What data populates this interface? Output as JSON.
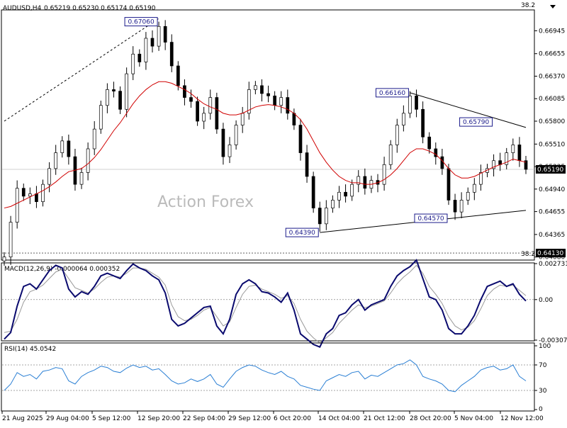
{
  "chart_data": [
    {
      "type": "candlestick",
      "title": "AUDUSD,H4",
      "ohlc": "0.65219 0.65230 0.65174 0.65190",
      "marker_text": "38.2",
      "watermark": "Action Forex",
      "ylim": [
        0.6405,
        0.672
      ],
      "y_ticks": [
        "0.66945",
        "0.66655",
        "0.66370",
        "0.66085",
        "0.65800",
        "0.65510",
        "0.65225",
        "0.64940",
        "0.64655",
        "0.64365",
        "0.64080"
      ],
      "x_ticks": [
        "21 Aug 2025",
        "29 Aug 04:00",
        "5 Sep 12:00",
        "12 Sep 20:00",
        "22 Sep 04:00",
        "29 Sep 12:00",
        "6 Oct 20:00",
        "14 Oct 04:00",
        "21 Oct 12:00",
        "28 Oct 20:00",
        "5 Nov 04:00",
        "12 Nov 12:00"
      ],
      "current_price": "0.65190",
      "fib_level": "0.64130",
      "annotations": [
        {
          "label": "0.67060",
          "x": "12 Sep 2025",
          "y": 0.6706
        },
        {
          "label": "0.64390",
          "x": "14 Oct 2025",
          "y": 0.6439
        },
        {
          "label": "0.66160",
          "x": "28 Oct 2025",
          "y": 0.6616
        },
        {
          "label": "0.64570",
          "x": "5 Nov 2025",
          "y": 0.6457
        },
        {
          "label": "0.65790",
          "x": "11 Nov 2025",
          "y": 0.6579
        }
      ],
      "series": [
        {
          "name": "price",
          "values": [
            0.6408,
            0.6452,
            0.6495,
            0.6485,
            0.6488,
            0.6478,
            0.65,
            0.652,
            0.654,
            0.6555,
            0.6535,
            0.65,
            0.6515,
            0.6545,
            0.657,
            0.66,
            0.662,
            0.6618,
            0.6595,
            0.664,
            0.6665,
            0.6655,
            0.6685,
            0.6675,
            0.67,
            0.668,
            0.665,
            0.6625,
            0.661,
            0.6605,
            0.658,
            0.659,
            0.661,
            0.657,
            0.6535,
            0.655,
            0.6575,
            0.659,
            0.662,
            0.6625,
            0.6615,
            0.6612,
            0.66,
            0.661,
            0.659,
            0.6575,
            0.654,
            0.651,
            0.647,
            0.645,
            0.647,
            0.648,
            0.649,
            0.6485,
            0.65,
            0.651,
            0.6495,
            0.6505,
            0.65,
            0.6525,
            0.655,
            0.6575,
            0.659,
            0.6612,
            0.6595,
            0.656,
            0.6545,
            0.6535,
            0.652,
            0.648,
            0.6465,
            0.648,
            0.649,
            0.65,
            0.6515,
            0.652,
            0.653,
            0.6525,
            0.654,
            0.655,
            0.653,
            0.6519
          ]
        },
        {
          "name": "ma",
          "values": [
            0.647,
            0.6472,
            0.6476,
            0.648,
            0.6484,
            0.6488,
            0.6492,
            0.6497,
            0.6503,
            0.651,
            0.6516,
            0.6518,
            0.652,
            0.6526,
            0.6534,
            0.6544,
            0.6556,
            0.6568,
            0.6578,
            0.659,
            0.6602,
            0.6612,
            0.662,
            0.6626,
            0.663,
            0.663,
            0.6628,
            0.6624,
            0.662,
            0.6615,
            0.6608,
            0.6602,
            0.6598,
            0.6595,
            0.659,
            0.6588,
            0.6588,
            0.659,
            0.6594,
            0.6598,
            0.66,
            0.6601,
            0.66,
            0.6598,
            0.6595,
            0.659,
            0.6582,
            0.657,
            0.6555,
            0.654,
            0.6528,
            0.6518,
            0.651,
            0.6505,
            0.6502,
            0.6502,
            0.65,
            0.65,
            0.6502,
            0.6506,
            0.6512,
            0.652,
            0.653,
            0.654,
            0.6545,
            0.6545,
            0.6542,
            0.6538,
            0.653,
            0.652,
            0.6512,
            0.6508,
            0.6508,
            0.651,
            0.6514,
            0.6518,
            0.6522,
            0.6525,
            0.6528,
            0.6532,
            0.653,
            0.6528
          ]
        }
      ]
    },
    {
      "type": "line",
      "title": "MACD(12,26,9) -0.000064 0.000352",
      "ylim": [
        -0.003077,
        0.002731
      ],
      "y_ticks": [
        "0.002731",
        "0.00",
        "-0.003077"
      ],
      "series": [
        {
          "name": "macd",
          "values": [
            -0.003,
            -0.0025,
            -0.0005,
            0.001,
            0.0012,
            0.0008,
            0.0015,
            0.0022,
            0.0026,
            0.0024,
            0.0008,
            0.0002,
            0.0006,
            0.0004,
            0.001,
            0.0018,
            0.002,
            0.0018,
            0.0016,
            0.0022,
            0.0027,
            0.0024,
            0.0022,
            0.0018,
            0.0015,
            0.0005,
            -0.0015,
            -0.002,
            -0.0018,
            -0.0014,
            -0.001,
            -0.0006,
            -0.0005,
            -0.002,
            -0.0026,
            -0.0015,
            0.0004,
            0.0012,
            0.0015,
            0.0012,
            0.0006,
            0.0005,
            0.0002,
            -0.0002,
            0.0005,
            -0.0008,
            -0.0026,
            -0.003,
            -0.0034,
            -0.0036,
            -0.0026,
            -0.0022,
            -0.0012,
            -0.001,
            -0.0004,
            0.0,
            -0.0008,
            -0.0004,
            -0.0002,
            0.0,
            0.001,
            0.0018,
            0.0022,
            0.0025,
            0.003,
            0.0016,
            0.0002,
            0.0,
            -0.0008,
            -0.0022,
            -0.0026,
            -0.0026,
            -0.002,
            -0.0012,
            0.0,
            0.001,
            0.0012,
            0.0014,
            0.001,
            0.0012,
            0.0004,
            -0.0001
          ]
        },
        {
          "name": "signal",
          "values": [
            -0.0025,
            -0.0024,
            -0.0015,
            -0.0002,
            0.0006,
            0.0008,
            0.0011,
            0.0016,
            0.0021,
            0.0023,
            0.0016,
            0.0009,
            0.0007,
            0.0005,
            0.0008,
            0.0013,
            0.0017,
            0.0018,
            0.0017,
            0.002,
            0.0024,
            0.0024,
            0.0023,
            0.002,
            0.0017,
            0.0011,
            -0.0004,
            -0.0013,
            -0.0016,
            -0.0015,
            -0.0012,
            -0.0008,
            -0.0006,
            -0.0013,
            -0.002,
            -0.0017,
            -0.0006,
            0.0004,
            0.001,
            0.0011,
            0.0008,
            0.0006,
            0.0004,
            0.0001,
            0.0003,
            -0.0003,
            -0.0015,
            -0.0024,
            -0.0029,
            -0.0033,
            -0.0029,
            -0.0025,
            -0.0018,
            -0.0013,
            -0.0008,
            -0.0004,
            -0.0006,
            -0.0005,
            -0.0003,
            -0.0001,
            0.0005,
            0.0012,
            0.0017,
            0.0021,
            0.0026,
            0.002,
            0.001,
            0.0004,
            -0.0003,
            -0.0013,
            -0.002,
            -0.0023,
            -0.0021,
            -0.0016,
            -0.0007,
            0.0003,
            0.0008,
            0.0011,
            0.001,
            0.0011,
            0.0007,
            0.0003
          ]
        }
      ]
    },
    {
      "type": "line",
      "title": "RSI(14) 45.0542",
      "ylim": [
        0,
        100
      ],
      "y_ticks": [
        "100",
        "70",
        "30",
        "0"
      ],
      "levels": [
        70,
        30
      ],
      "series": [
        {
          "name": "rsi",
          "values": [
            30,
            40,
            58,
            52,
            55,
            48,
            60,
            62,
            66,
            64,
            45,
            40,
            52,
            58,
            62,
            68,
            66,
            60,
            58,
            65,
            70,
            66,
            68,
            62,
            64,
            55,
            45,
            40,
            42,
            48,
            44,
            48,
            55,
            40,
            35,
            48,
            60,
            66,
            70,
            68,
            62,
            58,
            55,
            60,
            52,
            48,
            38,
            35,
            32,
            30,
            45,
            50,
            55,
            52,
            58,
            60,
            48,
            54,
            52,
            58,
            64,
            70,
            72,
            78,
            70,
            52,
            48,
            45,
            40,
            30,
            28,
            38,
            45,
            52,
            62,
            66,
            68,
            62,
            64,
            70,
            52,
            45
          ]
        }
      ]
    }
  ]
}
